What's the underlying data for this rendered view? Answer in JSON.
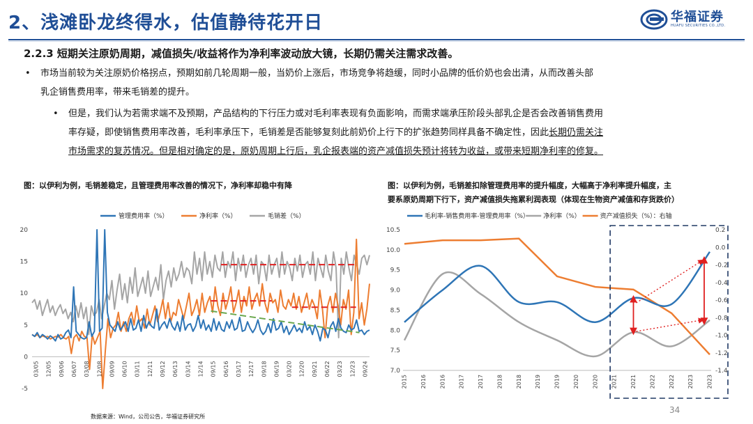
{
  "page": {
    "title": "2、浅滩卧龙终得水，估值静待花开日",
    "logo_text": "华福证券",
    "logo_sub": "HUAFU SECURITIES CO.,LTD.",
    "heading": "2.2.3  短期关注原奶周期，减值损失/收益将作为净利率波动放大镜，长期仍需关注需求改善。",
    "bullet1": {
      "line1": "市场当前较为关注原奶价格拐点，预期如前几轮周期一般，当奶价上涨后，市场竞争将趋缓，同时小品牌的低价奶也会出清，从而改善头部",
      "line2": "乳企销售费用率，带来毛销差的提升。"
    },
    "bullet2": {
      "line1": "但是，我们认为若需求端不及预期，产品结构的下行压力或对毛利率表现有负面影响，而需求端承压阶段头部乳企是否会改善销售费用",
      "line2a": "率存疑，即使销售费用率改善，毛利率承压下，毛销差是否能够复刻此前奶价上行下的扩张趋势同样具备不确定性，因此",
      "line2b": "长期仍需关注",
      "line3a": "市场需求的复苏情况。但是相对确定的是，原奶周期上行后，乳企报表端的资产减值损失预计将转为收益，或带来短期净利率的修复。"
    },
    "caption_left": "图：以伊利为例，毛销差稳定，且管理费用率改善的情况下，净利率却稳中有降",
    "caption_right_1": "图：以伊利为例，毛销差扣除管理费用率的提升幅度，大幅高于净利率提升幅度，主",
    "caption_right_2": "要系原奶周期下行下，资产减值损失拖累利润表现（体现在生物资产减值和存货跌价）",
    "source": "数据来源：Wind，公司公告，华福证券研究所",
    "page_number": "34"
  },
  "chart_left": {
    "type": "line",
    "legend": [
      "管理费用率（%）",
      "净利率（%）",
      "毛销差（%）"
    ],
    "colors": [
      "#2e75b6",
      "#ed7d31",
      "#a5a5a5"
    ],
    "ylim": [
      -5,
      20
    ],
    "yticks": [
      -5,
      0,
      5,
      10,
      15,
      20
    ],
    "xticks": [
      "03/05",
      "12/05",
      "09/06",
      "06/07",
      "03/08",
      "12/08",
      "09/09",
      "06/10",
      "03/11",
      "12/11",
      "09/12",
      "06/13",
      "03/14",
      "12/14",
      "09/15",
      "06/16",
      "03/17",
      "12/17",
      "09/18",
      "06/19",
      "03/20",
      "12/20",
      "09/21",
      "06/22",
      "03/23",
      "12/23",
      "09/24"
    ],
    "series": [
      {
        "name": "管理费用率（%）",
        "values": [
          3.5,
          3.2,
          3.8,
          3.0,
          3.5,
          3.2,
          2.8,
          3.3,
          3.0,
          2.5,
          3.5,
          2.8,
          3.0,
          3.8,
          4.2,
          3.0,
          11.0,
          4.0,
          3.5,
          3.0,
          2.8,
          3.0,
          5.5,
          3.2,
          4.0,
          30.0,
          4.0,
          4.5,
          30.0,
          7.0,
          5.0,
          4.5,
          4.0,
          5.5,
          4.2,
          4.8,
          5.5,
          4.0,
          6.0,
          4.2,
          4.5,
          5.8,
          4.0,
          6.5,
          4.5,
          5.5,
          4.8,
          4.5,
          7.5,
          4.2,
          5.0,
          5.5,
          4.5,
          6.0,
          4.8,
          4.2,
          5.5,
          4.0,
          6.5,
          4.2,
          5.0,
          5.2,
          4.0,
          4.8,
          6.5,
          4.5,
          5.8,
          4.2,
          5.0,
          4.0,
          6.0,
          4.2,
          5.5,
          4.3,
          4.0,
          5.5,
          4.5,
          5.8,
          4.2,
          4.5,
          6.2,
          4.0,
          4.2,
          5.5,
          4.5,
          3.8,
          4.5,
          5.8,
          4.2,
          3.5,
          4.0,
          5.2,
          3.8,
          6.0,
          4.2,
          4.5,
          5.5,
          3.8,
          4.8,
          3.5,
          4.2,
          5.0,
          4.0,
          4.5,
          3.8,
          5.5,
          4.2,
          4.8,
          3.5,
          5.0,
          4.0,
          2.5,
          4.5,
          4.2,
          3.0,
          4.8,
          5.5,
          4.0,
          6.0,
          4.5,
          4.0,
          3.8,
          5.0,
          4.2,
          4.5,
          5.8,
          4.0,
          4.2,
          3.5,
          4.0,
          4.2
        ]
      },
      {
        "name": "净利率（%）",
        "values": [
          3.5,
          3.2,
          3.5,
          3.0,
          3.3,
          3.1,
          3.2,
          2.8,
          3.0,
          3.2,
          3.1,
          3.5,
          3.0,
          2.8,
          3.2,
          0.5,
          3.0,
          3.5,
          2.5,
          4.0,
          3.2,
          3.0,
          -2.0,
          3.5,
          2.0,
          3.0,
          4.0,
          -5.0,
          1.0,
          6.0,
          3.0,
          4.5,
          5.0,
          7.0,
          4.0,
          5.5,
          4.0,
          6.0,
          7.0,
          5.0,
          8.0,
          5.5,
          6.0,
          4.5,
          7.5,
          5.0,
          6.5,
          8.0,
          5.5,
          7.0,
          9.0,
          6.0,
          8.5,
          5.5,
          7.0,
          6.5,
          9.0,
          7.5,
          6.0,
          8.0,
          10.0,
          6.5,
          7.5,
          9.0,
          6.5,
          10.0,
          7.0,
          8.5,
          9.5,
          7.0,
          11.0,
          8.0,
          6.5,
          10.0,
          7.5,
          9.0,
          11.0,
          7.0,
          8.5,
          10.5,
          7.0,
          9.5,
          8.0,
          11.0,
          7.5,
          9.0,
          10.0,
          8.0,
          11.5,
          8.5,
          7.0,
          10.0,
          8.5,
          9.0,
          7.0,
          10.5,
          8.0,
          7.5,
          9.0,
          8.0,
          10.0,
          7.5,
          9.5,
          7.0,
          8.5,
          10.0,
          7.5,
          9.0,
          8.0,
          6.0,
          10.5,
          7.5,
          3.0,
          8.0,
          9.5,
          7.0,
          10.0,
          8.0,
          5.0,
          9.0,
          7.5,
          10.5,
          3.5,
          7.0,
          18.5,
          6.0,
          8.5,
          5.0,
          7.5,
          11.5
        ]
      },
      {
        "name": "毛销差（%）",
        "values": [
          8.5,
          9.0,
          7.5,
          8.8,
          6.5,
          7.8,
          9.0,
          7.0,
          8.0,
          6.5,
          7.5,
          8.2,
          6.8,
          7.5,
          6.0,
          7.0,
          5.5,
          8.0,
          6.2,
          8.5,
          6.0,
          7.8,
          3.5,
          8.0,
          6.5,
          7.0,
          9.0,
          6.0,
          8.0,
          10.0,
          9.0,
          12.0,
          7.5,
          10.5,
          13.0,
          9.0,
          11.5,
          8.5,
          12.5,
          10.0,
          14.0,
          9.5,
          11.0,
          12.5,
          10.0,
          13.5,
          9.5,
          11.0,
          12.5,
          10.5,
          14.5,
          9.0,
          12.0,
          13.5,
          11.0,
          14.0,
          12.0,
          13.0,
          15.0,
          12.5,
          14.0,
          13.5,
          11.5,
          16.5,
          13.0,
          15.5,
          12.0,
          16.5,
          13.0,
          15.0,
          12.5,
          16.0,
          14.0,
          13.5,
          16.5,
          12.5,
          15.0,
          14.0,
          16.5,
          12.0,
          15.5,
          13.5,
          16.0,
          12.5,
          14.5,
          15.5,
          13.0,
          16.0,
          11.5,
          15.0,
          14.5,
          12.0,
          16.0,
          13.0,
          14.5,
          15.5,
          12.5,
          16.5,
          13.0,
          15.0,
          14.0,
          12.0,
          15.5,
          13.5,
          16.0,
          12.5,
          14.5,
          15.0,
          13.0,
          16.5,
          12.0,
          15.5,
          14.0,
          12.5,
          16.0,
          13.5,
          12.0,
          16.5,
          14.0,
          3.0,
          15.5,
          13.0,
          16.5,
          14.0,
          12.0,
          16.0,
          14.5,
          13.0,
          15.5,
          16.0,
          14.5,
          16.0
        ]
      }
    ],
    "annotations": {
      "red_dashed": [
        {
          "x0": 0.56,
          "x1": 0.96,
          "y": 14.5
        },
        {
          "x0": 0.53,
          "x1": 0.71,
          "y": 8.8
        },
        {
          "x0": 0.77,
          "x1": 0.96,
          "y": 7.8
        }
      ],
      "green_dashed": {
        "x0": 0.53,
        "x1": 0.97,
        "y0": 7.2,
        "y1": 3.8
      }
    }
  },
  "chart_right": {
    "type": "line",
    "legend": [
      "毛利率-销售费用率-管理费用率（%）",
      "净利率（%）",
      "资产减值损失（%）：右轴"
    ],
    "colors": [
      "#2e75b6",
      "#a5a5a5",
      "#ed7d31"
    ],
    "ylim_left": [
      7.0,
      10.5
    ],
    "yticks_left": [
      7.0,
      7.5,
      8.0,
      8.5,
      9.0,
      9.5,
      10.0,
      10.5
    ],
    "ylim_right": [
      -1.4,
      0.2
    ],
    "yticks_right": [
      0.2,
      0.0,
      -0.2,
      -0.4,
      -0.6,
      -0.8,
      -1.0,
      -1.2,
      -1.4
    ],
    "x": [
      "2015",
      "2016",
      "2016",
      "2017",
      "2017",
      "2018",
      "2018",
      "2019",
      "2019",
      "2020",
      "2020",
      "2021",
      "2021",
      "2022",
      "2022",
      "2023",
      "2023"
    ],
    "series": [
      {
        "name": "毛利率-销售费用率-管理费用率（%）",
        "points": [
          [
            0,
            8.2
          ],
          [
            2,
            9.0
          ],
          [
            4,
            9.6
          ],
          [
            6,
            8.7
          ],
          [
            8,
            8.7
          ],
          [
            10,
            8.2
          ],
          [
            12,
            8.8
          ],
          [
            14,
            8.65
          ],
          [
            16,
            9.95
          ]
        ]
      },
      {
        "name": "净利率（%）",
        "points": [
          [
            0,
            7.75
          ],
          [
            2,
            9.4
          ],
          [
            4,
            8.9
          ],
          [
            6,
            8.2
          ],
          [
            8,
            7.75
          ],
          [
            10,
            7.35
          ],
          [
            12,
            7.95
          ],
          [
            14,
            7.6
          ],
          [
            16,
            8.25
          ]
        ]
      },
      {
        "name": "资产减值损失（%）：右轴",
        "points": [
          [
            0,
            0.04
          ],
          [
            2,
            0.08
          ],
          [
            4,
            0.08
          ],
          [
            6,
            0.1
          ],
          [
            8,
            -0.33
          ],
          [
            10,
            -0.45
          ],
          [
            12,
            -0.48
          ],
          [
            14,
            -0.75
          ],
          [
            16,
            -1.22
          ]
        ]
      }
    ],
    "highlight_years": [
      "2021",
      "2023"
    ]
  }
}
